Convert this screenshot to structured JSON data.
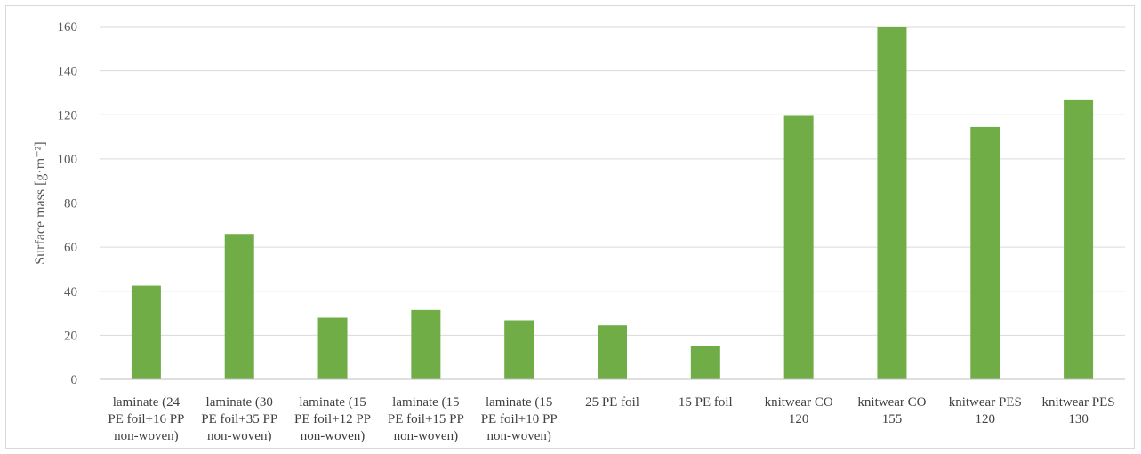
{
  "chart_data": {
    "type": "bar",
    "categories": [
      [
        "laminate (24",
        "PE foil+16 PP",
        "non-woven)"
      ],
      [
        "laminate (30",
        "PE foil+35 PP",
        "non-woven)"
      ],
      [
        "laminate (15",
        "PE foil+12 PP",
        "non-woven)"
      ],
      [
        "laminate (15",
        "PE foil+15 PP",
        "non-woven)"
      ],
      [
        "laminate (15",
        "PE foil+10 PP",
        "non-woven)"
      ],
      [
        "25 PE foil"
      ],
      [
        "15 PE foil"
      ],
      [
        "knitwear CO",
        "120"
      ],
      [
        "knitwear CO",
        "155"
      ],
      [
        "knitwear PES",
        "120"
      ],
      [
        "knitwear PES",
        "130"
      ]
    ],
    "values": [
      42.5,
      66,
      28,
      31.5,
      26.8,
      24.5,
      15,
      119.5,
      160,
      114.5,
      127
    ],
    "ylabel": "Surface mass [g·m⁻²]",
    "ylim": [
      0,
      160
    ],
    "yticks": [
      0,
      20,
      40,
      60,
      80,
      100,
      120,
      140,
      160
    ],
    "grid": true,
    "bar_color": "#70ad47",
    "grid_color": "#d9d9d9",
    "axis_color": "#bfbfbf"
  }
}
